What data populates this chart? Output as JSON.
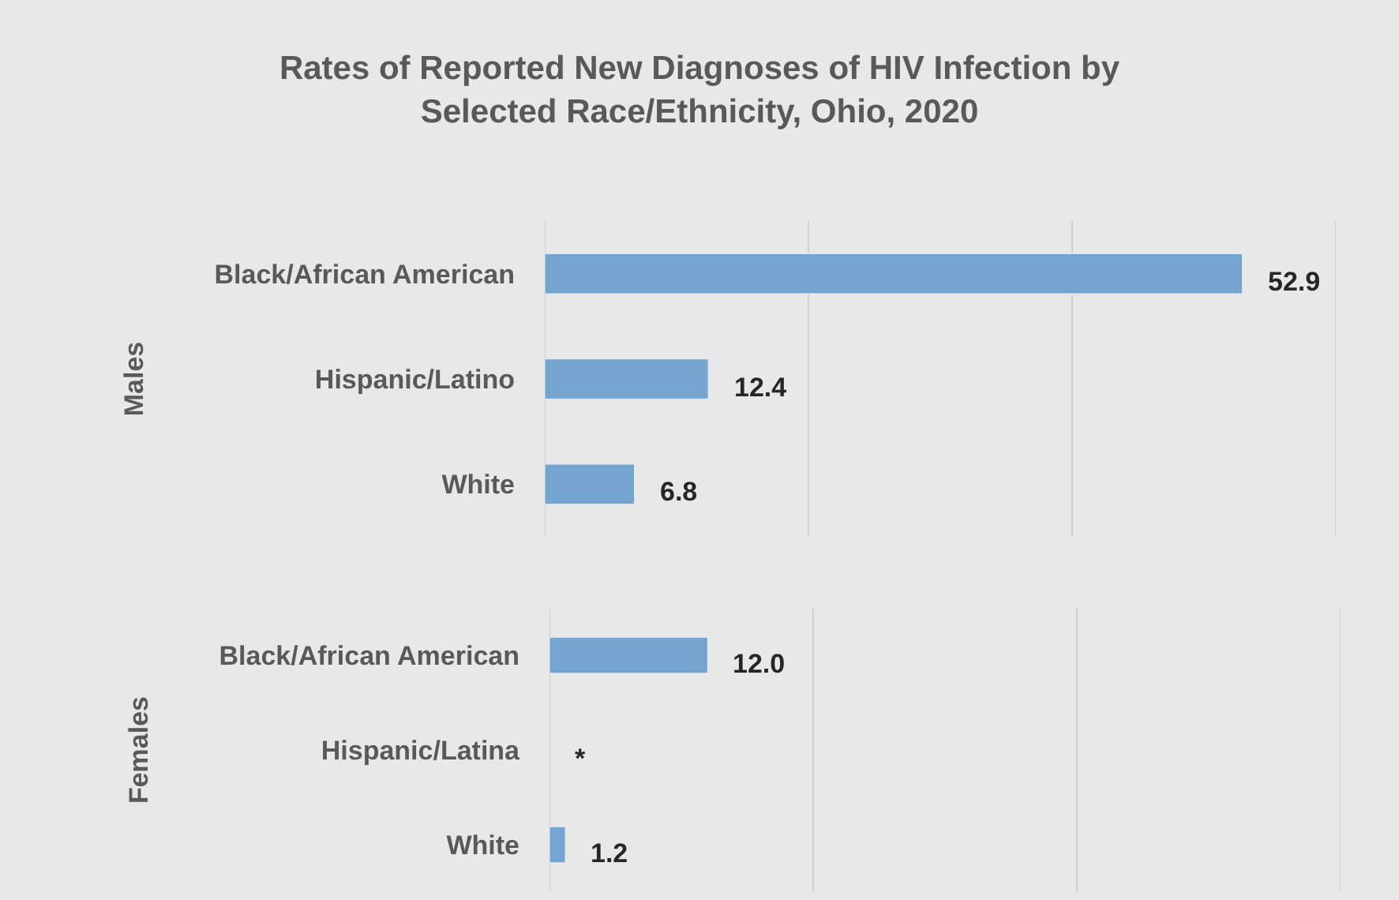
{
  "chart_data": [
    {
      "type": "bar",
      "orientation": "horizontal",
      "title": "Rates of Reported New Diagnoses of HIV Infection by Selected Race/Ethnicity, Ohio, 2020",
      "ylabel": "Males",
      "categories": [
        "Black/African American",
        "Hispanic/Latino",
        "White"
      ],
      "values": [
        52.9,
        12.4,
        6.8
      ],
      "value_labels": [
        "52.9",
        "12.4",
        "6.8"
      ],
      "color": "#75a5cf",
      "xlim": [
        0,
        60
      ],
      "xticks": [
        {
          "value": 0,
          "label": null
        },
        {
          "value": 20,
          "label": null
        },
        {
          "value": 40,
          "label": null
        },
        {
          "value": 60,
          "label": null
        }
      ],
      "grid": "x",
      "tick_labels": "y"
    },
    {
      "type": "bar",
      "orientation": "horizontal",
      "ylabel": "Females",
      "categories": [
        "Black/African American",
        "Hispanic/Latina",
        "White"
      ],
      "values": [
        12.0,
        null,
        1.2
      ],
      "value_labels": [
        "12.0",
        "*",
        "1.2"
      ],
      "color": "#75a5cf",
      "xlim": [
        0,
        60
      ],
      "xticks": [
        {
          "value": 0,
          "label": null
        },
        {
          "value": 20,
          "label": null
        },
        {
          "value": 40,
          "label": null
        },
        {
          "value": 60,
          "label": null
        }
      ],
      "grid": "x",
      "tick_labels": "y"
    }
  ]
}
